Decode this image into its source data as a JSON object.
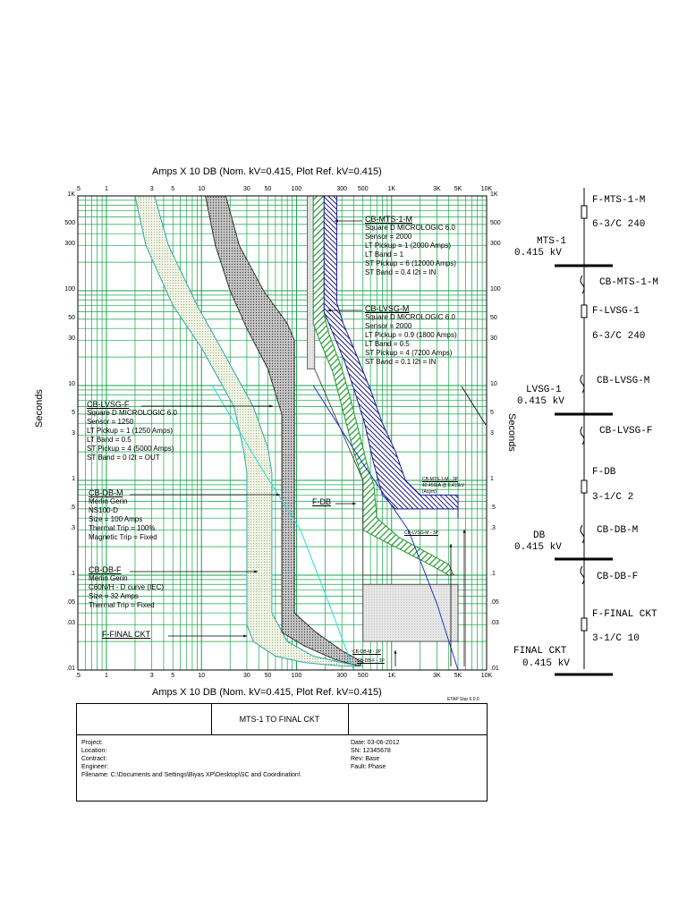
{
  "chart_data": {
    "type": "line",
    "title": "Amps X 10  DB (Nom. kV=0.415, Plot Ref. kV=0.415)",
    "xlabel": "Amps X 10  DB (Nom. kV=0.415, Plot Ref. kV=0.415)",
    "ylabel": "Seconds",
    "xscale": "log",
    "yscale": "log",
    "xlim": [
      0.5,
      10000
    ],
    "ylim": [
      0.01,
      1000
    ],
    "grid": true,
    "xticks": [
      ".5",
      "1",
      "3",
      "5",
      "10",
      "30",
      "50",
      "100",
      "300",
      "500",
      "1K",
      "3K",
      "5K",
      "10K"
    ],
    "xtick_values": [
      0.5,
      1,
      3,
      5,
      10,
      30,
      50,
      100,
      300,
      500,
      1000,
      3000,
      5000,
      10000
    ],
    "yticks": [
      "1K",
      "500",
      "300",
      "100",
      "50",
      "30",
      "10",
      "5",
      "3",
      "1",
      ".5",
      ".3",
      ".1",
      ".05",
      ".03",
      ".01"
    ],
    "ytick_values": [
      1000,
      500,
      300,
      100,
      50,
      30,
      10,
      5,
      3,
      1,
      0.5,
      0.3,
      0.1,
      0.05,
      0.03,
      0.01
    ],
    "series": [
      {
        "name": "CB-DB-F",
        "color": "#2aa8a0",
        "left": [
          [
            2,
            1000
          ],
          [
            2.6,
            300
          ],
          [
            5,
            70
          ],
          [
            10,
            25
          ],
          [
            22,
            6
          ],
          [
            28,
            2
          ],
          [
            30,
            1.2
          ],
          [
            30,
            0.1
          ],
          [
            30,
            0.03
          ],
          [
            35,
            0.02
          ],
          [
            60,
            0.014
          ],
          [
            120,
            0.012
          ],
          [
            300,
            0.011
          ]
        ],
        "right": [
          [
            3.2,
            1000
          ],
          [
            4.5,
            300
          ],
          [
            9,
            70
          ],
          [
            16,
            25
          ],
          [
            35,
            6
          ],
          [
            50,
            2.2
          ],
          [
            55,
            1.2
          ],
          [
            55,
            0.1
          ],
          [
            55,
            0.04
          ],
          [
            80,
            0.02
          ],
          [
            150,
            0.014
          ],
          [
            300,
            0.012
          ],
          [
            500,
            0.011
          ]
        ]
      },
      {
        "name": "CB-DB-M",
        "color": "#333333",
        "left": [
          [
            11,
            1000
          ],
          [
            14,
            300
          ],
          [
            20,
            100
          ],
          [
            30,
            40
          ],
          [
            50,
            15
          ],
          [
            70,
            5
          ],
          [
            70,
            1
          ],
          [
            70,
            0.1
          ],
          [
            70,
            0.025
          ],
          [
            120,
            0.018
          ],
          [
            250,
            0.013
          ],
          [
            450,
            0.011
          ]
        ],
        "right": [
          [
            18,
            1000
          ],
          [
            25,
            300
          ],
          [
            45,
            100
          ],
          [
            80,
            45
          ],
          [
            95,
            30
          ],
          [
            95,
            5
          ],
          [
            95,
            1
          ],
          [
            95,
            0.1
          ],
          [
            95,
            0.04
          ],
          [
            160,
            0.025
          ],
          [
            300,
            0.016
          ],
          [
            500,
            0.012
          ]
        ]
      },
      {
        "name": "CB-LVSG-F",
        "color": "#606060",
        "left": [
          [
            130,
            1000
          ],
          [
            130,
            300
          ],
          [
            130,
            40
          ],
          [
            130,
            25
          ],
          [
            130,
            15
          ]
        ],
        "right": [
          [
            155,
            1000
          ],
          [
            155,
            300
          ],
          [
            155,
            40
          ],
          [
            155,
            25
          ],
          [
            155,
            15
          ]
        ]
      },
      {
        "name": "CB-LVSG-M",
        "color": "#1f9a2a",
        "left": [
          [
            150,
            1000
          ],
          [
            150,
            300
          ],
          [
            150,
            45
          ],
          [
            175,
            30
          ],
          [
            240,
            14
          ],
          [
            300,
            6
          ],
          [
            400,
            2
          ],
          [
            500,
            1
          ],
          [
            500,
            0.3
          ],
          [
            700,
            0.25
          ],
          [
            2500,
            0.13
          ],
          [
            4000,
            0.1
          ]
        ],
        "right": [
          [
            195,
            1000
          ],
          [
            195,
            300
          ],
          [
            195,
            55
          ],
          [
            220,
            35
          ],
          [
            300,
            15
          ],
          [
            360,
            8
          ],
          [
            430,
            4
          ],
          [
            550,
            1.5
          ],
          [
            650,
            0.9
          ],
          [
            700,
            0.4
          ],
          [
            1200,
            0.25
          ],
          [
            4000,
            0.13
          ],
          [
            4500,
            0.1
          ]
        ]
      },
      {
        "name": "CB-MTS-1-M",
        "color": "#1a1a8c",
        "left": [
          [
            195,
            1000
          ],
          [
            195,
            300
          ],
          [
            195,
            60
          ],
          [
            230,
            40
          ],
          [
            320,
            18
          ],
          [
            420,
            8
          ],
          [
            520,
            4
          ],
          [
            650,
            1.5
          ],
          [
            800,
            0.7
          ],
          [
            1100,
            0.5
          ],
          [
            5000,
            0.5
          ],
          [
            5000,
            0.4
          ]
        ],
        "right": [
          [
            265,
            1000
          ],
          [
            265,
            300
          ],
          [
            265,
            75
          ],
          [
            310,
            45
          ],
          [
            420,
            22
          ],
          [
            600,
            9
          ],
          [
            800,
            4
          ],
          [
            1100,
            2
          ],
          [
            1400,
            1
          ],
          [
            2000,
            0.7
          ],
          [
            5000,
            0.7
          ],
          [
            5000,
            0.5
          ]
        ]
      },
      {
        "name": "F-DB",
        "color": "#2233cc",
        "line": [
          [
            150,
            10
          ],
          [
            500,
            1.5
          ],
          [
            1500,
            0.3
          ],
          [
            3000,
            0.05
          ],
          [
            5000,
            0.01
          ]
        ]
      },
      {
        "name": "F-FINAL CKT",
        "color": "#22dddd",
        "line": [
          [
            13,
            10
          ],
          [
            40,
            1.5
          ],
          [
            110,
            0.3
          ],
          [
            220,
            0.05
          ],
          [
            400,
            0.01
          ]
        ]
      }
    ]
  },
  "annotations": [
    {
      "hdr": "CB-MTS-1-M",
      "lines": [
        "Square D  MICROLOGIC 6.0",
        "Sensor = 2000",
        "LT Pickup = 1 (2000 Amps)",
        "LT Band = 1",
        "ST Pickup = 6 (12000 Amps)",
        "ST Band = 0.4  I2t = IN"
      ]
    },
    {
      "hdr": "CB-LVSG-M",
      "lines": [
        "Square D  MICROLOGIC 6.0",
        "Sensor = 2000",
        "LT Pickup = 0.9 (1800 Amps)",
        "LT Band = 0.5",
        "ST Pickup = 4 (7200 Amps)",
        "ST Band = 0.1  I2t = IN"
      ]
    },
    {
      "hdr": "CB-LVSG-F",
      "lines": [
        "Square D  MICROLOGIC 6.0",
        "Sensor = 1250",
        "LT Pickup = 1 (1250 Amps)",
        "LT Band = 0.5",
        "ST Pickup = 4 (5000 Amps)",
        "ST Band = 0  I2t = OUT"
      ]
    },
    {
      "hdr": "CB-DB-M",
      "lines": [
        "Merlin Gerin",
        "NS100-D",
        "Size = 100 Amps",
        "Thermal Trip = 100%",
        "Magnetic Trip = Fixed"
      ]
    },
    {
      "hdr": "CB-DB-F",
      "lines": [
        "Merlin Gerin",
        "C60N/H - D curve (IEC)",
        "Size = 32 Amps",
        "Thermal Trip = Fixed"
      ]
    },
    {
      "hdr": "F-FINAL CKT",
      "lines": []
    },
    {
      "hdr": "F-DB",
      "lines": []
    }
  ],
  "small_labels": {
    "mts_3p": "CB-MTS-1-M - 3P",
    "mts_fault": "40.456kA @ 0.415kV",
    "mts_asym": "(Asym)",
    "lvsg_3p": "CB-LVSG-M - 3P",
    "dbm_3p": "CB-DB-M - 3P",
    "dbf_3p": "CB-DB-F - 3P"
  },
  "etap": "ETAP Star 6.0.0",
  "title_block": {
    "title": "MTS-1 TO FINAL CKT",
    "left": [
      "Project:",
      "Location:",
      "Contract:",
      "Engineer:",
      "Filename: C:\\Documents and Settings\\Biyas XP\\Desktop\\SC and Coordination\\"
    ],
    "right": [
      "Date: 03-06-2012",
      "SN:    12345678",
      "Rev:   Base",
      "Fault: Phase"
    ]
  },
  "single_line": {
    "f_mts_name": "F-MTS-1-M",
    "f_mts_cable": "6-3/C 240",
    "bus1_name": "MTS-1",
    "bus1_kv": "0.415 kV",
    "cb_mts": "CB-MTS-1-M",
    "f_lvsg_name": "F-LVSG-1",
    "f_lvsg_cable": "6-3/C 240",
    "cb_lvsg_m": "CB-LVSG-M",
    "bus2_name": "LVSG-1",
    "bus2_kv": "0.415 kV",
    "cb_lvsg_f": "CB-LVSG-F",
    "f_db_name": "F-DB",
    "f_db_cable": "3-1/C 2",
    "cb_db_m": "CB-DB-M",
    "bus3_name": "DB",
    "bus3_kv": "0.415 kV",
    "cb_db_f": "CB-DB-F",
    "f_final_name": "F-FINAL CKT",
    "f_final_cable": "3-1/C 10",
    "bus4_name": "FINAL CKT",
    "bus4_kv": "0.415 kV"
  }
}
